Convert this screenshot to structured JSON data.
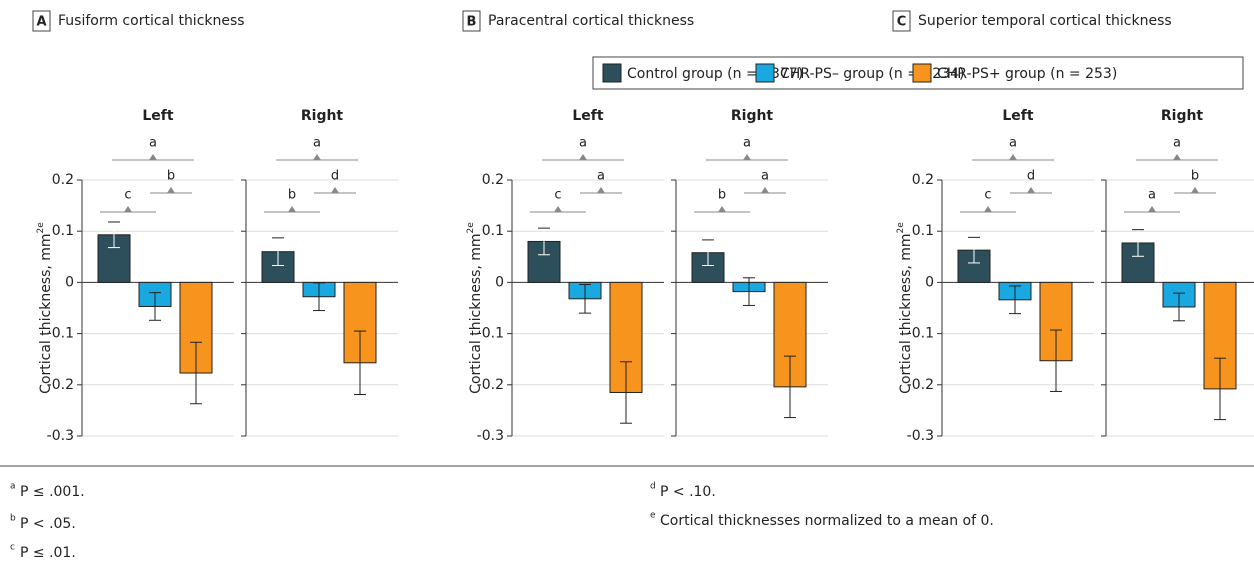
{
  "chart_data": [
    {
      "type": "bar",
      "label": "A",
      "title": "Fusiform cortical thickness",
      "ylabel": "Cortical thickness, mm",
      "ylabel_superscript": "2e",
      "categories": [
        "Left",
        "Right"
      ],
      "ylim": [
        -0.3,
        0.2
      ],
      "yticks": [
        -0.3,
        -0.2,
        -0.1,
        0,
        0.1,
        0.2
      ],
      "grid": true,
      "series": [
        {
          "values": [
            0.093,
            0.06
          ],
          "errors": [
            0.025,
            0.027
          ]
        },
        {
          "values": [
            -0.047,
            -0.028
          ],
          "errors": [
            0.027,
            0.027
          ]
        },
        {
          "values": [
            -0.177,
            -0.157
          ],
          "errors": [
            0.06,
            0.062
          ]
        }
      ],
      "significance": {
        "control_vs_plus": [
          "a",
          "a"
        ],
        "control_vs_minus": [
          "c",
          "b"
        ],
        "minus_vs_plus": [
          "b",
          "d"
        ]
      }
    },
    {
      "type": "bar",
      "label": "B",
      "title": "Paracentral cortical thickness",
      "ylabel": "Cortical thickness, mm",
      "ylabel_superscript": "2e",
      "categories": [
        "Left",
        "Right"
      ],
      "ylim": [
        -0.3,
        0.2
      ],
      "yticks": [
        -0.3,
        -0.2,
        -0.1,
        0,
        0.1,
        0.2
      ],
      "grid": true,
      "series": [
        {
          "values": [
            0.08,
            0.058
          ],
          "errors": [
            0.026,
            0.025
          ]
        },
        {
          "values": [
            -0.032,
            -0.018
          ],
          "errors": [
            0.028,
            0.027
          ]
        },
        {
          "values": [
            -0.215,
            -0.204
          ],
          "errors": [
            0.06,
            0.06
          ]
        }
      ],
      "significance": {
        "control_vs_plus": [
          "a",
          "a"
        ],
        "control_vs_minus": [
          "c",
          "b"
        ],
        "minus_vs_plus": [
          "a",
          "a"
        ]
      }
    },
    {
      "type": "bar",
      "label": "C",
      "title": "Superior temporal cortical thickness",
      "ylabel": "Cortical thickness, mm",
      "ylabel_superscript": "2e",
      "categories": [
        "Left",
        "Right"
      ],
      "ylim": [
        -0.3,
        0.2
      ],
      "yticks": [
        -0.3,
        -0.2,
        -0.1,
        0,
        0.1,
        0.2
      ],
      "grid": true,
      "series": [
        {
          "values": [
            0.063,
            0.077
          ],
          "errors": [
            0.025,
            0.026
          ]
        },
        {
          "values": [
            -0.034,
            -0.048
          ],
          "errors": [
            0.027,
            0.027
          ]
        },
        {
          "values": [
            -0.153,
            -0.208
          ],
          "errors": [
            0.06,
            0.06
          ]
        }
      ],
      "significance": {
        "control_vs_plus": [
          "a",
          "a"
        ],
        "control_vs_minus": [
          "c",
          "a"
        ],
        "minus_vs_plus": [
          "d",
          "b"
        ]
      }
    }
  ],
  "legend": [
    {
      "name": "Control group (n = 1377)",
      "color": "#2d4f5c"
    },
    {
      "name": "CHR-PS– group (n = 1234)",
      "color": "#1aa8e0"
    },
    {
      "name": "CHR-PS+ group (n = 253)",
      "color": "#f7941d"
    }
  ],
  "footnotes": [
    {
      "mark": "a",
      "text": "P ≤ .001."
    },
    {
      "mark": "b",
      "text": "P < .05."
    },
    {
      "mark": "c",
      "text": "P ≤ .01."
    },
    {
      "mark": "d",
      "text": "P < .10."
    },
    {
      "mark": "e",
      "text": "Cortical thicknesses normalized to a mean of 0."
    }
  ]
}
